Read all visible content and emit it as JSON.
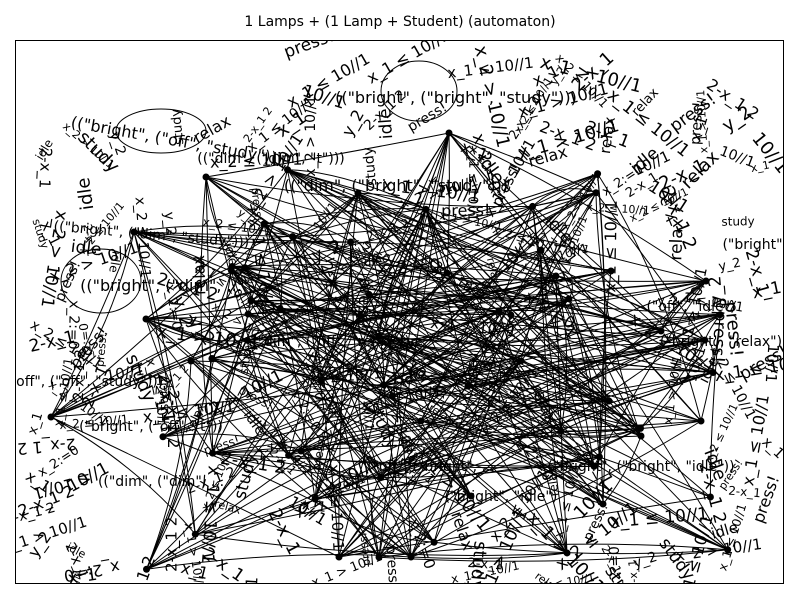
{
  "title": "1 Lamps + (1 Lamp + Student) (automaton)",
  "diagram": {
    "state_labels": [
      "((\"bright\", (\"bright\", \"study\")))",
      "((\"bright\", (\"off\", \"study\")))",
      "((\"dim\", (\"dim\", \"t\")))",
      "((\"dim\", (\"bright\", \"study\")))",
      "((\"bright\", (\"dim\", \"study\")))",
      "((\"bright\", (\"dim\", ...",
      "((\"off\", (\"off\", \"study\")))",
      "(\"bright\", (\"off\", \"t\"))",
      "((\"dim\", (\"dim\", ...",
      "(\"off\", (\"bright\", ...",
      "(\"bright\", (\"bright\", \"idle\"))",
      "(\"bright\", \"idle\")",
      "(\"dim\", (\"off\", \"relax\"))",
      "(\"off\", \"idle\")",
      "(\"bright\", \"relax\")",
      "(\"bright\", \"stu"
    ],
    "edge_labels": [
      "press!",
      "x_1 ≤ 10//1",
      "y_2",
      "x_2 ≤ 10//1",
      "x_1 > 10//1",
      "x_2 > 10//1",
      "2-x_1",
      "x_1",
      "2-x_1 2",
      "x_2:=0",
      "idle",
      "relax",
      "study",
      "10//1"
    ],
    "colors": {
      "stroke": "#000000",
      "node": "#000000",
      "background": "#ffffff"
    }
  }
}
